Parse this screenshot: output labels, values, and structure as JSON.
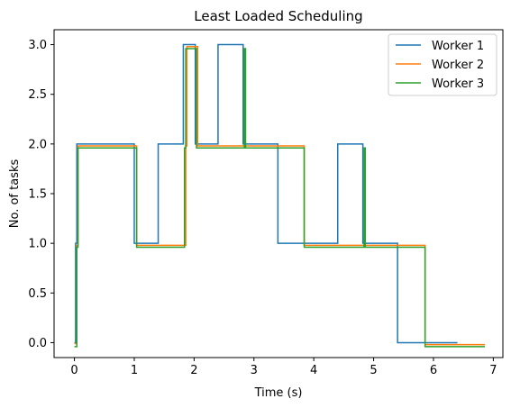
{
  "chart_data": {
    "type": "line",
    "drawstyle": "steps-post",
    "title": "Least Loaded Scheduling",
    "xlabel": "Time (s)",
    "ylabel": "No. of tasks",
    "xlim": [
      -0.34,
      7.16
    ],
    "ylim": [
      -0.15,
      3.15
    ],
    "xticks": [
      0,
      1,
      2,
      3,
      4,
      5,
      6,
      7
    ],
    "yticks": [
      0.0,
      0.5,
      1.0,
      1.5,
      2.0,
      2.5,
      3.0
    ],
    "ytick_labels": [
      "0.0",
      "0.5",
      "1.0",
      "1.5",
      "2.0",
      "2.5",
      "3.0"
    ],
    "grid": false,
    "legend_position": "upper right",
    "series": [
      {
        "name": "Worker 1",
        "color": "#1f77b4",
        "x": [
          0.0,
          0.02,
          0.04,
          1.0,
          1.4,
          1.82,
          2.02,
          2.4,
          2.82,
          3.4,
          3.82,
          4.4,
          4.82,
          5.4,
          6.4
        ],
        "y": [
          0,
          1,
          2,
          1,
          2,
          3,
          2,
          3,
          2,
          1,
          1,
          2,
          1,
          0,
          0
        ]
      },
      {
        "name": "Worker 2",
        "color": "#ff7f0e",
        "x": [
          0.0,
          0.04,
          0.06,
          1.04,
          1.86,
          1.88,
          2.06,
          2.86,
          3.84,
          4.86,
          5.86,
          6.86
        ],
        "y": [
          -0.01,
          0.98,
          1.98,
          0.98,
          1.98,
          2.98,
          1.98,
          1.98,
          0.98,
          0.98,
          -0.02,
          -0.02
        ]
      },
      {
        "name": "Worker 3",
        "color": "#2ca02c",
        "x": [
          0.0,
          0.04,
          0.06,
          1.04,
          1.84,
          1.86,
          2.04,
          2.84,
          2.86,
          3.84,
          4.84,
          4.86,
          5.86,
          6.86
        ],
        "y": [
          -0.04,
          0.96,
          1.96,
          0.96,
          1.96,
          2.96,
          1.96,
          2.96,
          1.96,
          0.96,
          1.96,
          0.96,
          -0.04,
          -0.04
        ]
      }
    ]
  }
}
